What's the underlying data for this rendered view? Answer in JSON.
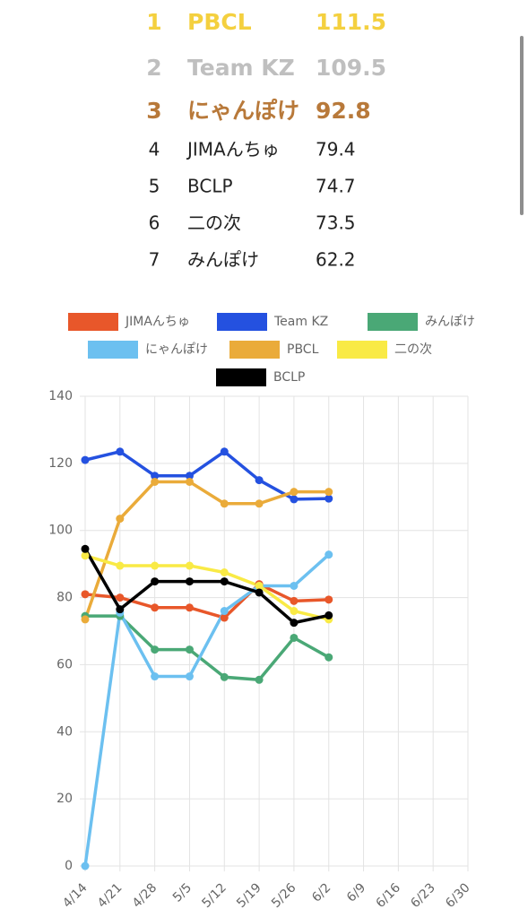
{
  "ranking": [
    {
      "rank": 1,
      "name": "PBCL",
      "score": 111.5
    },
    {
      "rank": 2,
      "name": "Team KZ",
      "score": 109.5
    },
    {
      "rank": 3,
      "name": "にゃんぽけ",
      "score": 92.8
    },
    {
      "rank": 4,
      "name": "JIMAんちゅ",
      "score": 79.4
    },
    {
      "rank": 5,
      "name": "BCLP",
      "score": 74.7
    },
    {
      "rank": 6,
      "name": "二の次",
      "score": 73.5
    },
    {
      "rank": 7,
      "name": "みんぽけ",
      "score": 62.2
    }
  ],
  "chart_data": {
    "type": "line",
    "categories": [
      "4/14",
      "4/21",
      "4/28",
      "5/5",
      "5/12",
      "5/19",
      "5/26",
      "6/2",
      "6/9",
      "6/16",
      "6/23",
      "6/30"
    ],
    "series": [
      {
        "name": "JIMAんちゅ",
        "color": "#e8572a",
        "values": [
          81,
          80,
          77,
          77,
          74,
          84,
          79,
          79.4,
          null,
          null,
          null,
          null
        ]
      },
      {
        "name": "Team KZ",
        "color": "#2451e0",
        "values": [
          121,
          123.5,
          116.3,
          116.3,
          123.5,
          115,
          109.3,
          109.5,
          null,
          null,
          null,
          null
        ]
      },
      {
        "name": "みんぽけ",
        "color": "#4aa876",
        "values": [
          74.5,
          74.5,
          64.5,
          64.5,
          56.3,
          55.5,
          68,
          62.2,
          null,
          null,
          null,
          null
        ]
      },
      {
        "name": "にゃんぽけ",
        "color": "#6cc0f0",
        "values": [
          0,
          75.5,
          56.5,
          56.5,
          76,
          83.5,
          83.5,
          92.8,
          null,
          null,
          null,
          null
        ]
      },
      {
        "name": "PBCL",
        "color": "#eaab3a",
        "values": [
          73.5,
          103.5,
          114.5,
          114.5,
          108,
          108,
          111.5,
          111.5,
          null,
          null,
          null,
          null
        ]
      },
      {
        "name": "二の次",
        "color": "#f9ea45",
        "values": [
          92.5,
          89.5,
          89.5,
          89.5,
          87.5,
          83.5,
          76,
          73.5,
          null,
          null,
          null,
          null
        ]
      },
      {
        "name": "BCLP",
        "color": "#000000",
        "values": [
          94.5,
          76.5,
          84.8,
          84.8,
          84.8,
          81.5,
          72.5,
          74.7,
          null,
          null,
          null,
          null
        ]
      }
    ],
    "ylim": [
      0,
      140
    ],
    "yticks": [
      0,
      20,
      40,
      60,
      80,
      100,
      120,
      140
    ],
    "grid": true
  }
}
